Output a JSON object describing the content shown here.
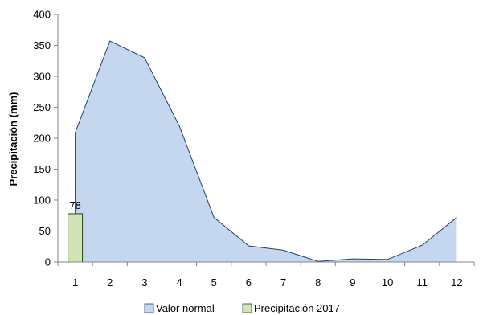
{
  "chart_data": {
    "type": "area",
    "x": [
      "1",
      "2",
      "3",
      "4",
      "5",
      "6",
      "7",
      "8",
      "9",
      "10",
      "11",
      "12"
    ],
    "ylabel": "Precipitación (mm)",
    "ylim": [
      0,
      400
    ],
    "yticks": [
      0,
      50,
      100,
      150,
      200,
      250,
      300,
      350,
      400
    ],
    "grid": false,
    "legend_position": "bottom",
    "series": [
      {
        "name": "Valor normal",
        "type": "area",
        "color": "#c5d7ee",
        "stroke": "#22406e",
        "values": [
          209,
          357,
          330,
          220,
          72,
          26,
          19,
          1,
          5,
          4,
          27,
          72
        ]
      },
      {
        "name": "Precipitación 2017",
        "type": "bar",
        "color": "#d3e3b8",
        "stroke": "#2b4514",
        "values": [
          78,
          null,
          null,
          null,
          null,
          null,
          null,
          null,
          null,
          null,
          null,
          null
        ],
        "data_labels": [
          "78"
        ]
      }
    ]
  }
}
